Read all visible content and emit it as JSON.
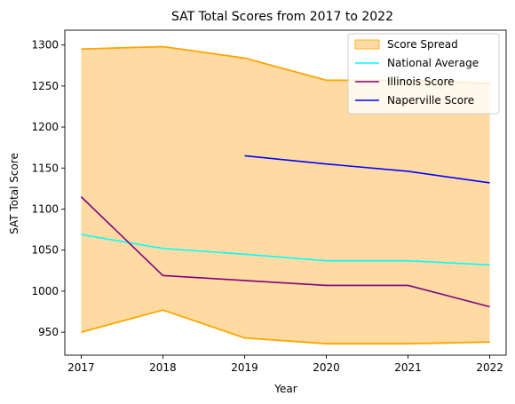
{
  "chart_data": {
    "type": "line",
    "title": "SAT Total Scores from 2017 to 2022",
    "xlabel": "Year",
    "ylabel": "SAT Total Score",
    "x": [
      2017,
      2018,
      2019,
      2020,
      2021,
      2022
    ],
    "xlim": [
      2016.8,
      2022.2
    ],
    "ylim": [
      922,
      1318
    ],
    "yticks": [
      950,
      1000,
      1050,
      1100,
      1150,
      1200,
      1250,
      1300
    ],
    "grid": false,
    "legend_position": "upper right",
    "spread": {
      "name": "Score Spread",
      "color": "#ffa500",
      "fill_color": "#ffdba3",
      "upper": [
        1295,
        1298,
        1284,
        1257,
        1257,
        1253
      ],
      "lower": [
        950,
        977,
        943,
        936,
        936,
        938
      ]
    },
    "series": [
      {
        "name": "National Average",
        "color": "#00ffff",
        "x": [
          2017,
          2018,
          2019,
          2020,
          2021,
          2022
        ],
        "values": [
          1069,
          1052,
          1045,
          1037,
          1037,
          1032
        ]
      },
      {
        "name": "Illinois Score",
        "color": "#800080",
        "x": [
          2017,
          2018,
          2019,
          2020,
          2021,
          2022
        ],
        "values": [
          1115,
          1019,
          1013,
          1007,
          1007,
          981
        ]
      },
      {
        "name": "Naperville Score",
        "color": "#0000ff",
        "x": [
          2019,
          2020,
          2021,
          2022
        ],
        "values": [
          1165,
          1155,
          1146,
          1132
        ]
      }
    ]
  }
}
